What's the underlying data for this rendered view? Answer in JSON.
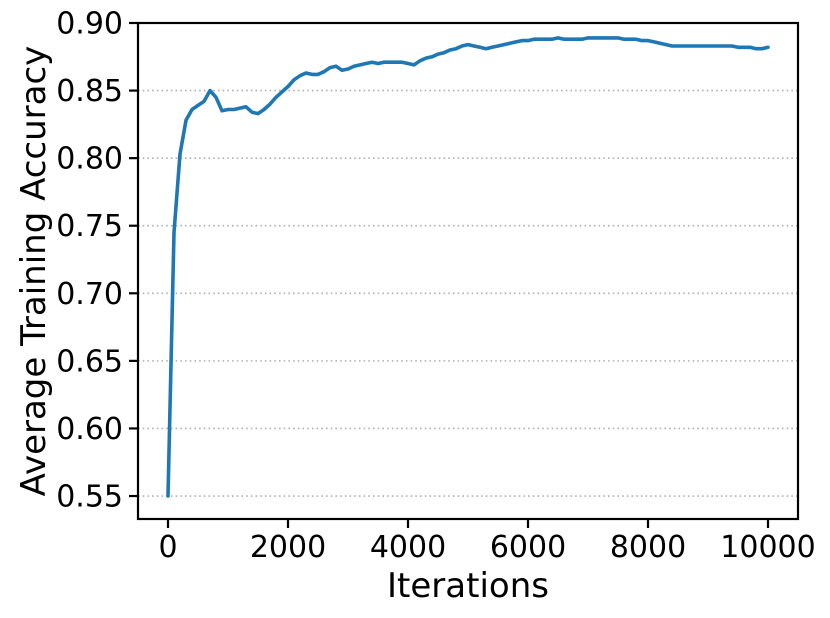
{
  "figure": {
    "background": "#ffffff"
  },
  "chart_data": {
    "type": "line",
    "title": "",
    "xlabel": "Iterations",
    "ylabel": "Average Training Accuracy",
    "legend": "none",
    "grid": "horizontal-dotted",
    "line_color": "#1f77b4",
    "grid_color": "#b0b0b0",
    "axis_color": "#000000",
    "xlim": [
      -500,
      10500
    ],
    "ylim": [
      0.533,
      0.9
    ],
    "xticks": [
      0,
      2000,
      4000,
      6000,
      8000,
      10000
    ],
    "xtick_labels": [
      "0",
      "2000",
      "4000",
      "6000",
      "8000",
      "10000"
    ],
    "yticks": [
      0.55,
      0.6,
      0.65,
      0.7,
      0.75,
      0.8,
      0.85,
      0.9
    ],
    "ytick_labels": [
      "0.55",
      "0.60",
      "0.65",
      "0.70",
      "0.75",
      "0.80",
      "0.85",
      "0.90"
    ],
    "x_start": 0,
    "x_step": 100,
    "values": [
      0.55,
      0.745,
      0.803,
      0.828,
      0.836,
      0.839,
      0.842,
      0.85,
      0.845,
      0.835,
      0.836,
      0.836,
      0.837,
      0.838,
      0.834,
      0.833,
      0.836,
      0.84,
      0.845,
      0.849,
      0.853,
      0.858,
      0.861,
      0.863,
      0.862,
      0.862,
      0.864,
      0.867,
      0.868,
      0.865,
      0.866,
      0.868,
      0.869,
      0.87,
      0.871,
      0.87,
      0.871,
      0.871,
      0.871,
      0.871,
      0.87,
      0.869,
      0.872,
      0.874,
      0.875,
      0.877,
      0.878,
      0.88,
      0.881,
      0.883,
      0.884,
      0.883,
      0.882,
      0.881,
      0.882,
      0.883,
      0.884,
      0.885,
      0.886,
      0.887,
      0.887,
      0.888,
      0.888,
      0.888,
      0.888,
      0.889,
      0.888,
      0.888,
      0.888,
      0.888,
      0.889,
      0.889,
      0.889,
      0.889,
      0.889,
      0.889,
      0.888,
      0.888,
      0.888,
      0.887,
      0.887,
      0.886,
      0.885,
      0.884,
      0.883,
      0.883,
      0.883,
      0.883,
      0.883,
      0.883,
      0.883,
      0.883,
      0.883,
      0.883,
      0.883,
      0.882,
      0.882,
      0.882,
      0.881,
      0.881,
      0.882
    ]
  }
}
